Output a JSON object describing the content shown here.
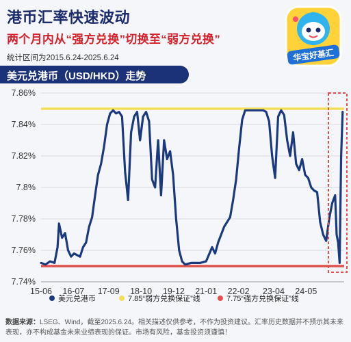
{
  "header": {
    "title": "港币汇率快速波动",
    "subtitle": "两个月内从“强方兑换”切换至“弱方兑换”",
    "period": "统计区间为2015.6.24-2025.6.24"
  },
  "brand": {
    "name": "华宝好基汇"
  },
  "chart_banner": "美元兑港币（USD/HKD）走势",
  "colors": {
    "series": "#1b3a7d",
    "weak_line": "#f3df5b",
    "strong_line": "#e0504c",
    "highlight_box": "#e0504c",
    "navy": "#1b2a6b",
    "red_text": "#d4202a"
  },
  "chart_data": {
    "type": "line",
    "ylim": [
      7.74,
      7.86
    ],
    "xlim": [
      2015.5,
      2025.6
    ],
    "y_ticks": [
      7.74,
      7.76,
      7.78,
      7.8,
      7.82,
      7.84,
      7.86
    ],
    "y_tick_labels": [
      "7.74%",
      "7.76%",
      "7.78%",
      "7.8%",
      "7.82%",
      "7.84%",
      "7.86%"
    ],
    "x_ticks": [
      {
        "label": "15-06",
        "x": 2015.5
      },
      {
        "label": "16-07",
        "x": 2016.58
      },
      {
        "label": "17-09",
        "x": 2017.75
      },
      {
        "label": "18-10",
        "x": 2018.83
      },
      {
        "label": "19-12",
        "x": 2019.92
      },
      {
        "label": "21-01",
        "x": 2021.0
      },
      {
        "label": "22-02",
        "x": 2022.08
      },
      {
        "label": "23-04",
        "x": 2023.25
      },
      {
        "label": "24-05",
        "x": 2024.33
      }
    ],
    "grid": "horizontal",
    "legend_position": "bottom",
    "series": [
      {
        "name": "美元兑港币",
        "type": "line",
        "x": [
          2015.5,
          2015.65,
          2015.8,
          2015.95,
          2016.05,
          2016.1,
          2016.2,
          2016.3,
          2016.4,
          2016.5,
          2016.6,
          2016.7,
          2016.8,
          2016.9,
          2017.0,
          2017.1,
          2017.2,
          2017.3,
          2017.4,
          2017.5,
          2017.6,
          2017.7,
          2017.8,
          2017.9,
          2018.0,
          2018.1,
          2018.2,
          2018.3,
          2018.4,
          2018.5,
          2018.6,
          2018.7,
          2018.8,
          2018.9,
          2019.0,
          2019.1,
          2019.2,
          2019.3,
          2019.4,
          2019.5,
          2019.6,
          2019.7,
          2019.8,
          2019.9,
          2020.0,
          2020.1,
          2020.2,
          2020.3,
          2020.5,
          2020.8,
          2021.0,
          2021.2,
          2021.3,
          2021.4,
          2021.5,
          2021.6,
          2021.7,
          2021.8,
          2021.9,
          2022.0,
          2022.1,
          2022.2,
          2022.3,
          2022.5,
          2022.7,
          2022.9,
          2023.0,
          2023.1,
          2023.2,
          2023.3,
          2023.4,
          2023.5,
          2023.6,
          2023.7,
          2023.8,
          2023.9,
          2024.0,
          2024.1,
          2024.2,
          2024.3,
          2024.4,
          2024.5,
          2024.6,
          2024.7,
          2024.8,
          2024.9,
          2025.0,
          2025.1,
          2025.2,
          2025.3,
          2025.35,
          2025.4,
          2025.45,
          2025.5,
          2025.55
        ],
        "values": [
          7.752,
          7.751,
          7.753,
          7.752,
          7.762,
          7.777,
          7.768,
          7.771,
          7.76,
          7.756,
          7.758,
          7.757,
          7.756,
          7.762,
          7.765,
          7.775,
          7.781,
          7.795,
          7.808,
          7.815,
          7.826,
          7.84,
          7.847,
          7.849,
          7.847,
          7.848,
          7.845,
          7.81,
          7.792,
          7.835,
          7.845,
          7.848,
          7.83,
          7.845,
          7.848,
          7.842,
          7.805,
          7.8,
          7.83,
          7.795,
          7.83,
          7.818,
          7.823,
          7.808,
          7.78,
          7.76,
          7.753,
          7.751,
          7.752,
          7.752,
          7.753,
          7.762,
          7.758,
          7.765,
          7.77,
          7.775,
          7.778,
          7.781,
          7.792,
          7.805,
          7.825,
          7.843,
          7.849,
          7.849,
          7.849,
          7.849,
          7.848,
          7.842,
          7.82,
          7.806,
          7.845,
          7.849,
          7.846,
          7.83,
          7.82,
          7.835,
          7.815,
          7.811,
          7.818,
          7.808,
          7.806,
          7.8,
          7.798,
          7.797,
          7.778,
          7.77,
          7.766,
          7.78,
          7.79,
          7.795,
          7.77,
          7.765,
          7.752,
          7.82,
          7.848
        ]
      },
      {
        "name": "7.85“弱方兑换保证”线",
        "type": "hline",
        "value": 7.85
      },
      {
        "name": "7.75“强方兑换保证”线",
        "type": "hline",
        "value": 7.75
      }
    ]
  },
  "footnote": {
    "label": "数据来源：",
    "text": "LSEG、Wind，截至2025.6.24。相关描述仅供参考，不作为投资建议。汇率历史数据并不预示其未来表现，亦不构成基金未来业绩表现的保证。市场有风险，基金投资须谨慎！"
  }
}
